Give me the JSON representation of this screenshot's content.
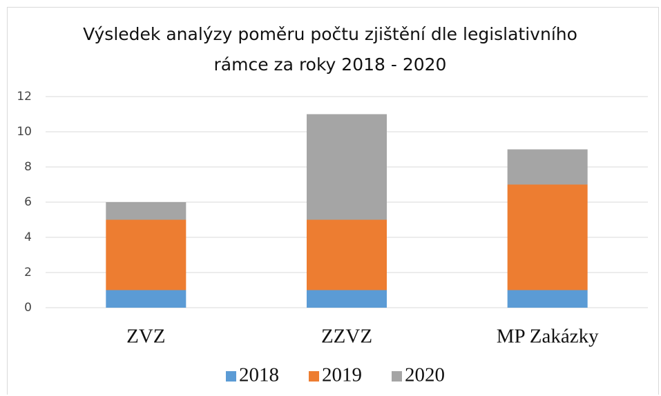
{
  "chart_data": {
    "type": "bar",
    "stacked": true,
    "title": "Výsledek analýzy poměru počtu zjištění dle legislativního rámce za roky 2018 - 2020",
    "categories": [
      "ZVZ",
      "ZZVZ",
      "MP Zakázky"
    ],
    "series": [
      {
        "name": "2018",
        "color": "#5b9bd5",
        "values": [
          1,
          1,
          1
        ]
      },
      {
        "name": "2019",
        "color": "#ed7d31",
        "values": [
          4,
          4,
          6
        ]
      },
      {
        "name": "2020",
        "color": "#a5a5a5",
        "values": [
          1,
          6,
          2
        ]
      }
    ],
    "ylim": [
      0,
      12
    ],
    "yticks": [
      0,
      2,
      4,
      6,
      8,
      10,
      12
    ],
    "grid": true,
    "legend": "bottom"
  }
}
